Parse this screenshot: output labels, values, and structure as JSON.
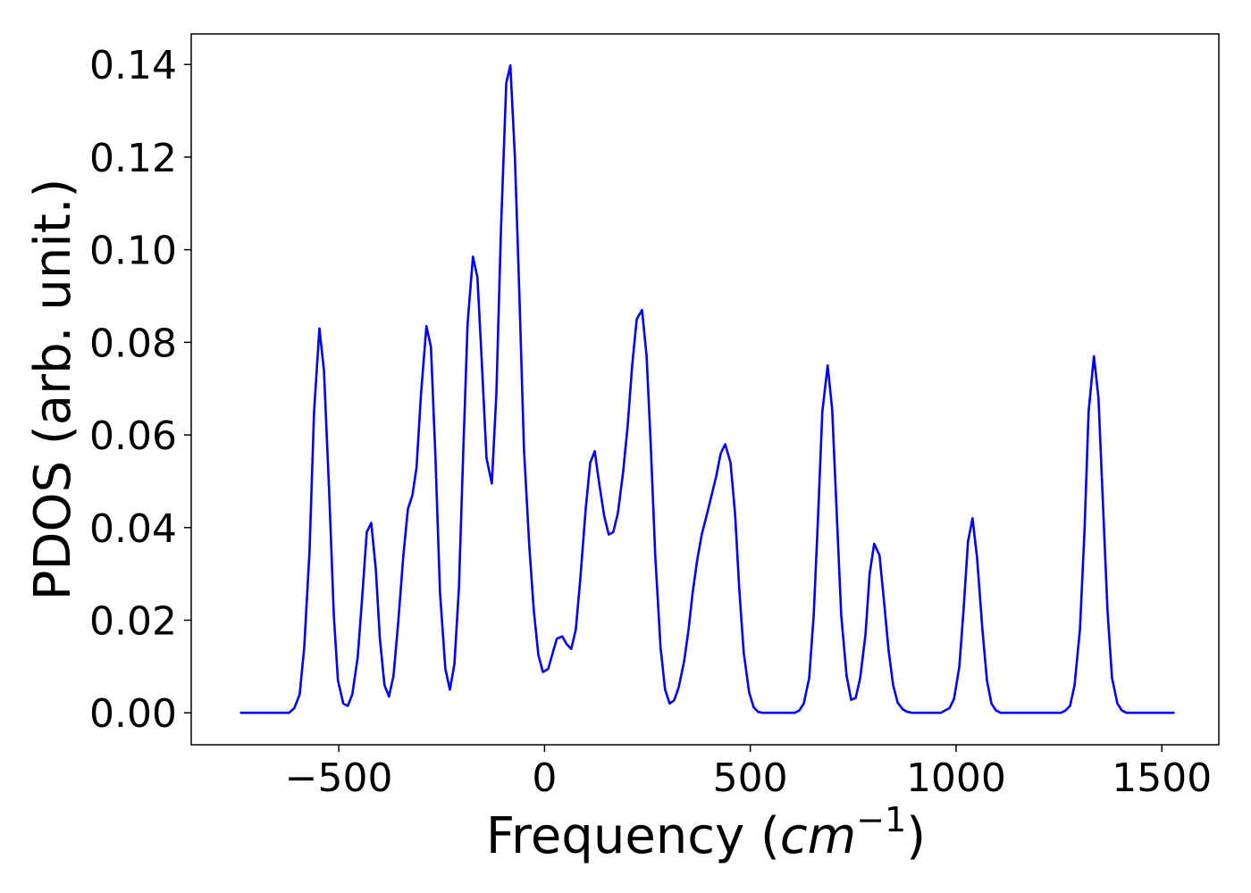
{
  "chart_data": {
    "type": "line",
    "xlabel": [
      "Frequency (",
      "cm",
      "−1",
      ")"
    ],
    "ylabel": "PDOS (arb. unit.)",
    "x": [
      -740,
      -621,
      -608,
      -595,
      -584,
      -571,
      -560,
      -547,
      -536,
      -523,
      -512,
      -502,
      -489,
      -478,
      -467,
      -454,
      -443,
      -432,
      -421,
      -410,
      -400,
      -389,
      -378,
      -367,
      -356,
      -343,
      -332,
      -321,
      -311,
      -300,
      -287,
      -276,
      -265,
      -254,
      -241,
      -230,
      -219,
      -208,
      -198,
      -187,
      -174,
      -163,
      -152,
      -141,
      -128,
      -117,
      -106,
      -93,
      -83,
      -72,
      -61,
      -50,
      -37,
      -26,
      -15,
      -4,
      9,
      20,
      30,
      43,
      54,
      65,
      76,
      87,
      100,
      111,
      122,
      132,
      145,
      156,
      167,
      178,
      191,
      202,
      213,
      224,
      237,
      248,
      258,
      269,
      282,
      293,
      304,
      315,
      326,
      339,
      350,
      360,
      371,
      382,
      395,
      406,
      417,
      428,
      439,
      452,
      463,
      473,
      484,
      497,
      508,
      519,
      530,
      608,
      619,
      630,
      643,
      654,
      665,
      675,
      688,
      699,
      710,
      721,
      734,
      745,
      756,
      767,
      780,
      790,
      801,
      814,
      825,
      836,
      847,
      858,
      871,
      882,
      893,
      963,
      973,
      984,
      995,
      1008,
      1018,
      1029,
      1040,
      1051,
      1064,
      1075,
      1086,
      1097,
      1108,
      1255,
      1266,
      1277,
      1288,
      1301,
      1312,
      1322,
      1335,
      1346,
      1357,
      1368,
      1379,
      1392,
      1403,
      1414,
      1531
    ],
    "series": [
      {
        "name": "PDOS",
        "color": "#0000ff",
        "values": [
          0,
          0,
          0.001,
          0.004,
          0.014,
          0.035,
          0.065,
          0.083,
          0.074,
          0.047,
          0.021,
          0.007,
          0.002,
          0.0015,
          0.004,
          0.012,
          0.025,
          0.039,
          0.041,
          0.031,
          0.016,
          0.006,
          0.0035,
          0.008,
          0.019,
          0.034,
          0.044,
          0.047,
          0.053,
          0.069,
          0.0835,
          0.079,
          0.055,
          0.026,
          0.0095,
          0.005,
          0.0105,
          0.027,
          0.055,
          0.084,
          0.0985,
          0.094,
          0.075,
          0.055,
          0.0495,
          0.069,
          0.104,
          0.136,
          0.1398,
          0.12,
          0.09,
          0.057,
          0.036,
          0.022,
          0.0125,
          0.0088,
          0.0095,
          0.013,
          0.016,
          0.0165,
          0.0148,
          0.0138,
          0.018,
          0.029,
          0.044,
          0.054,
          0.0565,
          0.05,
          0.0425,
          0.0385,
          0.039,
          0.043,
          0.052,
          0.062,
          0.075,
          0.085,
          0.087,
          0.077,
          0.058,
          0.034,
          0.014,
          0.005,
          0.002,
          0.0027,
          0.0055,
          0.011,
          0.018,
          0.026,
          0.033,
          0.0385,
          0.043,
          0.047,
          0.051,
          0.056,
          0.058,
          0.054,
          0.043,
          0.027,
          0.013,
          0.0045,
          0.0012,
          0.0002,
          0,
          0,
          0.0005,
          0.002,
          0.0075,
          0.021,
          0.043,
          0.065,
          0.075,
          0.0655,
          0.043,
          0.021,
          0.008,
          0.0028,
          0.0032,
          0.0075,
          0.017,
          0.03,
          0.0365,
          0.034,
          0.024,
          0.0135,
          0.006,
          0.0022,
          0.0007,
          0.0002,
          0,
          0,
          0.0005,
          0.001,
          0.003,
          0.01,
          0.022,
          0.037,
          0.042,
          0.0335,
          0.018,
          0.007,
          0.002,
          0.0005,
          0,
          0,
          0.0005,
          0.0015,
          0.006,
          0.018,
          0.039,
          0.065,
          0.077,
          0.068,
          0.045,
          0.022,
          0.0075,
          0.002,
          0.0005,
          0,
          0
        ]
      }
    ],
    "xlim": [
      -858.5,
      1638.5
    ],
    "ylim": [
      -0.0069,
      0.1466
    ],
    "xticks": [
      {
        "value": -500,
        "label": "−500"
      },
      0,
      500,
      1000,
      1500
    ],
    "yticks": [
      {
        "value": 0,
        "label": "0.00"
      },
      {
        "value": 0.02,
        "label": "0.02"
      },
      {
        "value": 0.04,
        "label": "0.04"
      },
      {
        "value": 0.06,
        "label": "0.06"
      },
      {
        "value": 0.08,
        "label": "0.08"
      },
      {
        "value": 0.1,
        "label": "0.10"
      },
      {
        "value": 0.12,
        "label": "0.12"
      },
      {
        "value": 0.14,
        "label": "0.14"
      }
    ],
    "grid": false
  }
}
